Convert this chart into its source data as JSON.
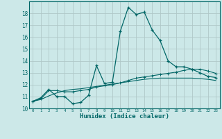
{
  "xlabel": "Humidex (Indice chaleur)",
  "bg_color": "#cce8e8",
  "grid_color": "#b0c8c8",
  "line_color": "#006666",
  "ylim": [
    10,
    19
  ],
  "xlim": [
    -0.5,
    23.5
  ],
  "yticks": [
    10,
    11,
    12,
    13,
    14,
    15,
    16,
    17,
    18
  ],
  "xticks": [
    0,
    1,
    2,
    3,
    4,
    5,
    6,
    7,
    8,
    9,
    10,
    11,
    12,
    13,
    14,
    15,
    16,
    17,
    18,
    19,
    20,
    21,
    22,
    23
  ],
  "xtick_labels": [
    "0",
    "1",
    "2",
    "3",
    "4",
    "5",
    "6",
    "7",
    "8",
    "9",
    "10",
    "11",
    "12",
    "13",
    "14",
    "15",
    "16",
    "17",
    "18",
    "19",
    "20",
    "21",
    "22",
    "23"
  ],
  "main_y": [
    10.6,
    10.9,
    11.6,
    11.0,
    11.0,
    10.4,
    10.5,
    11.1,
    13.6,
    12.1,
    12.2,
    16.5,
    18.5,
    17.9,
    18.1,
    16.6,
    15.7,
    14.0,
    13.5,
    13.5,
    13.3,
    13.0,
    12.7,
    12.6
  ],
  "line2_y": [
    10.6,
    10.8,
    11.5,
    11.5,
    11.4,
    11.4,
    11.5,
    11.6,
    11.8,
    11.9,
    12.0,
    12.15,
    12.35,
    12.55,
    12.65,
    12.75,
    12.85,
    12.95,
    13.05,
    13.2,
    13.3,
    13.3,
    13.15,
    12.95
  ],
  "line3_y": [
    10.6,
    10.75,
    11.05,
    11.3,
    11.5,
    11.6,
    11.65,
    11.75,
    11.85,
    11.95,
    12.05,
    12.15,
    12.25,
    12.35,
    12.45,
    12.5,
    12.55,
    12.55,
    12.55,
    12.55,
    12.55,
    12.5,
    12.45,
    12.35
  ]
}
